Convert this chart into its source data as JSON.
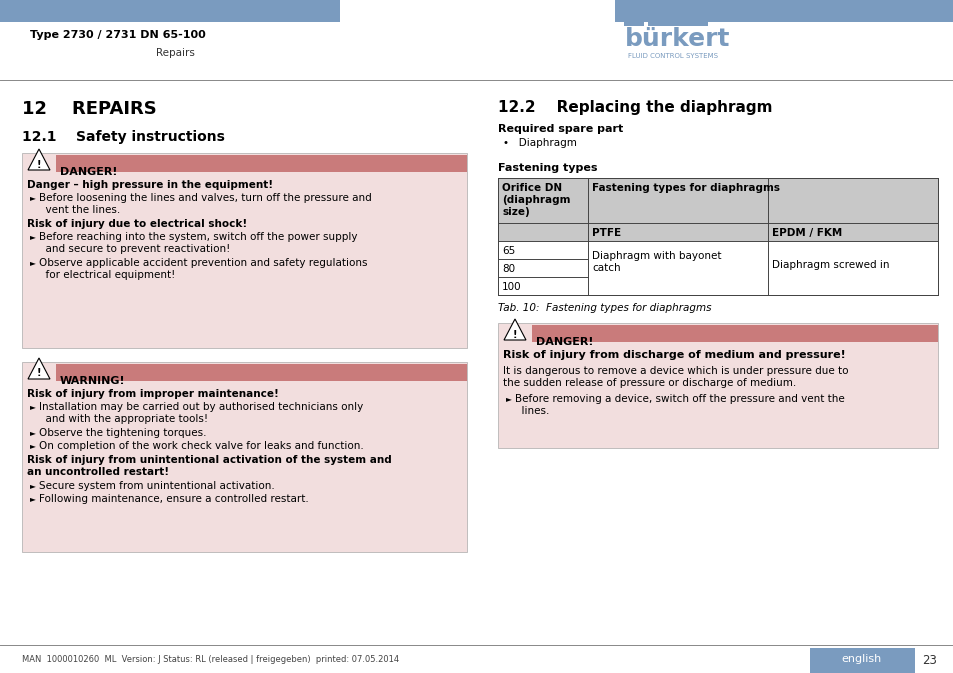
{
  "bg_color": "#ffffff",
  "header_bar_color": "#7a9bbf",
  "header_text_left_bold": "Type 2730 / 2731 DN 65-100",
  "header_subtext_left": "Repairs",
  "danger_bar_color": "#c97b7b",
  "danger_bg_color": "#f2dede",
  "section_12_title": "12    REPAIRS",
  "section_121_title": "12.1    Safety instructions",
  "section_122_title": "12.2    Replacing the diaphragm",
  "footer_text": "MAN  1000010260  ML  Version: J Status: RL (released | freigegeben)  printed: 07.05.2014",
  "footer_page": "23",
  "footer_lang": "english",
  "footer_lang_bg": "#7a9bbf",
  "table_header_bg": "#c8c8c8",
  "table_border_color": "#444444",
  "line_color": "#888888"
}
